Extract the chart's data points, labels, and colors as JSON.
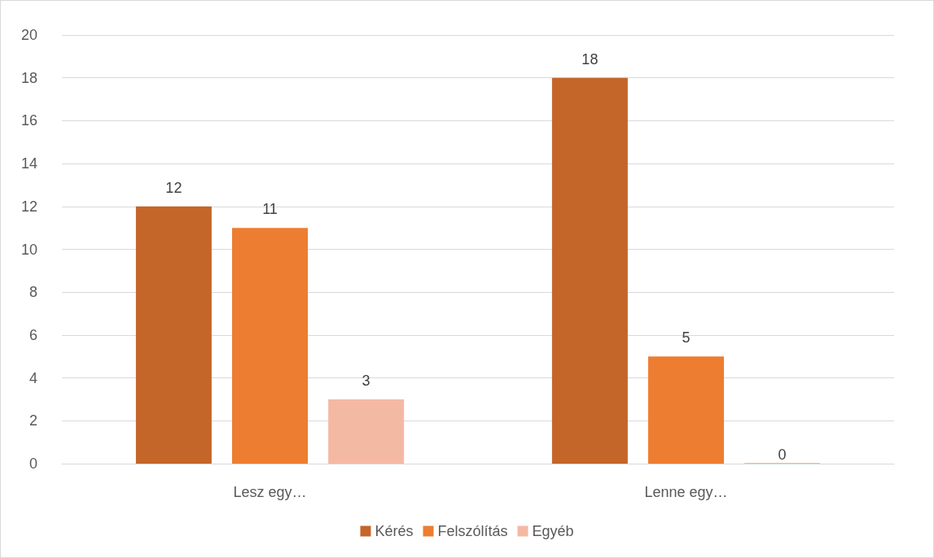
{
  "chart_data": {
    "type": "bar",
    "categories": [
      "Lesz egy…",
      "Lenne egy…"
    ],
    "series": [
      {
        "name": "Kérés",
        "color": "#c4652a",
        "values": [
          12,
          18
        ]
      },
      {
        "name": "Felszólítás",
        "color": "#ed7d31",
        "values": [
          11,
          5
        ]
      },
      {
        "name": "Egyéb",
        "color": "#f4b9a3",
        "values": [
          3,
          0
        ]
      }
    ],
    "ylim": [
      0,
      20
    ],
    "yticks": [
      0,
      2,
      4,
      6,
      8,
      10,
      12,
      14,
      16,
      18,
      20
    ],
    "grid": "y",
    "legend": "bottom",
    "data_labels": true
  }
}
